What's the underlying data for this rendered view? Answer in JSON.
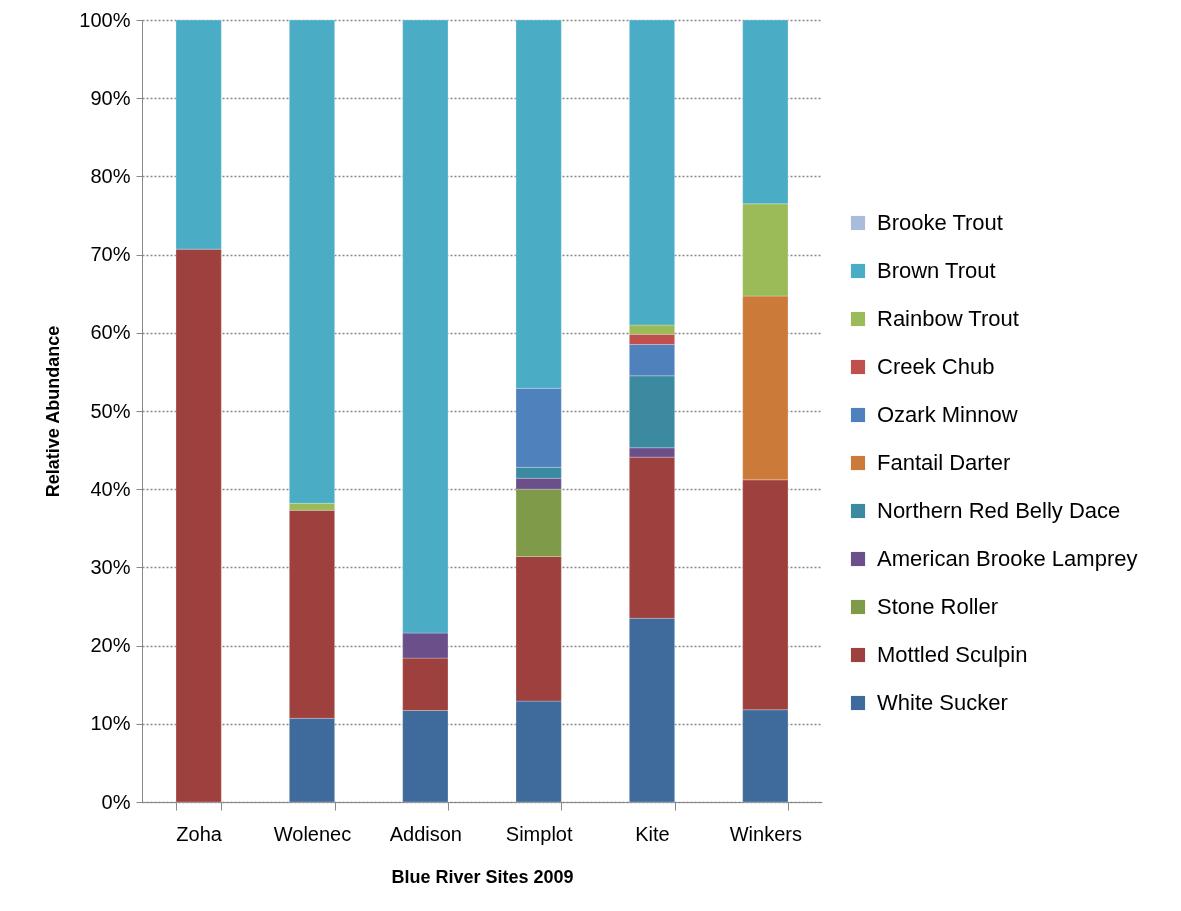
{
  "chart_data": {
    "type": "bar",
    "stacked": true,
    "xlabel": "Blue River Sites 2009",
    "ylabel": "Relative Abundance",
    "categories": [
      "Zoha",
      "Wolenec",
      "Addison",
      "Simplot",
      "Kite",
      "Winkers"
    ],
    "ylim": [
      0,
      100
    ],
    "yticks": [
      {
        "value": 0,
        "label": "0%"
      },
      {
        "value": 10,
        "label": "10%"
      },
      {
        "value": 20,
        "label": "20%"
      },
      {
        "value": 30,
        "label": "30%"
      },
      {
        "value": 40,
        "label": "40%"
      },
      {
        "value": 50,
        "label": "50%"
      },
      {
        "value": 60,
        "label": "60%"
      },
      {
        "value": 70,
        "label": "70%"
      },
      {
        "value": 80,
        "label": "80%"
      },
      {
        "value": 90,
        "label": "90%"
      },
      {
        "value": 100,
        "label": "100%"
      }
    ],
    "grid": "y",
    "legend": "right",
    "series": [
      {
        "name": "White Sucker",
        "color": "#3f6a9c",
        "values": [
          null,
          10.7,
          11.7,
          12.9,
          23.5,
          11.8
        ]
      },
      {
        "name": "Mottled Sculpin",
        "color": "#9e413e",
        "values": [
          70.7,
          26.6,
          6.7,
          18.5,
          20.6,
          29.4
        ]
      },
      {
        "name": "Stone Roller",
        "color": "#7f9a48",
        "values": [
          null,
          null,
          null,
          8.6,
          null,
          null
        ]
      },
      {
        "name": "American Brooke Lamprey",
        "color": "#6b4f8a",
        "values": [
          null,
          null,
          3.2,
          1.4,
          1.2,
          null
        ]
      },
      {
        "name": "Northern Red Belly Dace",
        "color": "#3b8aa0",
        "values": [
          null,
          null,
          null,
          1.4,
          9.2,
          null
        ]
      },
      {
        "name": "Fantail Darter",
        "color": "#cc7a3a",
        "values": [
          null,
          null,
          null,
          null,
          null,
          23.5
        ]
      },
      {
        "name": "Ozark Minnow",
        "color": "#4f81bd",
        "values": [
          null,
          null,
          null,
          10.1,
          4.0,
          null
        ]
      },
      {
        "name": "Creek Chub",
        "color": "#c0504d",
        "values": [
          null,
          null,
          null,
          null,
          1.3,
          null
        ]
      },
      {
        "name": "Rainbow Trout",
        "color": "#9bbb59",
        "values": [
          null,
          0.9,
          null,
          null,
          1.2,
          11.8
        ]
      },
      {
        "name": "Brown Trout",
        "color": "#4bacc6",
        "values": [
          29.3,
          61.8,
          78.4,
          47.1,
          39.0,
          23.5
        ]
      },
      {
        "name": "Brooke Trout",
        "color": "#a9bcdb",
        "values": [
          null,
          null,
          null,
          null,
          null,
          null
        ]
      }
    ]
  }
}
